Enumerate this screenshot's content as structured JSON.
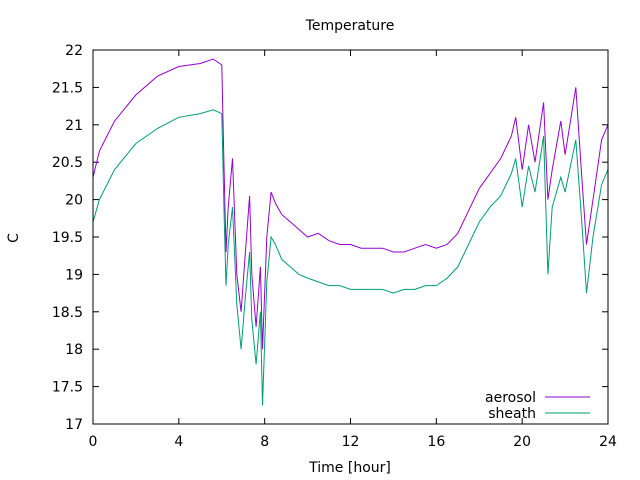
{
  "chart_data": {
    "type": "line",
    "title": "Temperature",
    "xlabel": "Time [hour]",
    "ylabel": "C",
    "xlim": [
      0,
      24
    ],
    "ylim": [
      17,
      22
    ],
    "xticks": [
      0,
      4,
      8,
      12,
      16,
      20,
      24
    ],
    "yticks": [
      17,
      17.5,
      18,
      18.5,
      19,
      19.5,
      20,
      20.5,
      21,
      21.5,
      22
    ],
    "xtick_labels": [
      "0",
      "4",
      "8",
      "12",
      "16",
      "20",
      "24"
    ],
    "ytick_labels": [
      "17",
      "17.5",
      "18",
      "18.5",
      "19",
      "19.5",
      "20",
      "20.5",
      "21",
      "21.5",
      "22"
    ],
    "grid": false,
    "legend_position": "bottom-right",
    "series": [
      {
        "name": "aerosol",
        "color": "#9400d3",
        "x": [
          0,
          0.3,
          1,
          2,
          3,
          4,
          5,
          5.6,
          6.0,
          6.1,
          6.2,
          6.3,
          6.5,
          6.7,
          6.9,
          7.1,
          7.3,
          7.4,
          7.6,
          7.8,
          7.9,
          8.1,
          8.3,
          8.5,
          8.8,
          9.2,
          9.6,
          10,
          10.5,
          11,
          11.5,
          12,
          12.5,
          13,
          13.5,
          14,
          14.5,
          15,
          15.5,
          16,
          16.5,
          17,
          17.5,
          18,
          18.5,
          19,
          19.5,
          19.7,
          20,
          20.3,
          20.6,
          21,
          21.2,
          21.4,
          21.8,
          22,
          22.5,
          22.8,
          23,
          23.3,
          23.7,
          24
        ],
        "y": [
          20.3,
          20.65,
          21.05,
          21.4,
          21.65,
          21.78,
          21.82,
          21.88,
          21.8,
          20.5,
          19.3,
          19.9,
          20.55,
          19.0,
          18.5,
          19.3,
          20.05,
          19.0,
          18.3,
          19.1,
          18.0,
          19.5,
          20.1,
          19.95,
          19.8,
          19.7,
          19.6,
          19.5,
          19.55,
          19.45,
          19.4,
          19.4,
          19.35,
          19.35,
          19.35,
          19.3,
          19.3,
          19.35,
          19.4,
          19.35,
          19.4,
          19.55,
          19.85,
          20.15,
          20.35,
          20.55,
          20.85,
          21.1,
          20.4,
          21.0,
          20.5,
          21.3,
          20.0,
          20.4,
          21.05,
          20.6,
          21.5,
          20.2,
          19.4,
          20.0,
          20.8,
          21.0
        ]
      },
      {
        "name": "sheath",
        "color": "#009e73",
        "x": [
          0,
          0.3,
          1,
          2,
          3,
          4,
          5,
          5.6,
          6.0,
          6.1,
          6.2,
          6.3,
          6.5,
          6.7,
          6.9,
          7.1,
          7.3,
          7.4,
          7.6,
          7.8,
          7.9,
          8.1,
          8.3,
          8.5,
          8.8,
          9.2,
          9.6,
          10,
          10.5,
          11,
          11.5,
          12,
          12.5,
          13,
          13.5,
          14,
          14.5,
          15,
          15.5,
          16,
          16.5,
          17,
          17.5,
          18,
          18.5,
          19,
          19.5,
          19.7,
          20,
          20.3,
          20.6,
          21,
          21.2,
          21.4,
          21.8,
          22,
          22.5,
          22.8,
          23,
          23.3,
          23.7,
          24
        ],
        "y": [
          19.7,
          20.0,
          20.4,
          20.75,
          20.95,
          21.1,
          21.15,
          21.2,
          21.15,
          19.9,
          18.85,
          19.4,
          19.9,
          18.6,
          18.0,
          18.7,
          19.3,
          18.4,
          17.8,
          18.5,
          17.25,
          18.9,
          19.5,
          19.4,
          19.2,
          19.1,
          19.0,
          18.95,
          18.9,
          18.85,
          18.85,
          18.8,
          18.8,
          18.8,
          18.8,
          18.75,
          18.8,
          18.8,
          18.85,
          18.85,
          18.95,
          19.1,
          19.4,
          19.7,
          19.9,
          20.05,
          20.35,
          20.55,
          19.9,
          20.45,
          20.1,
          20.85,
          19.0,
          19.9,
          20.3,
          20.1,
          20.8,
          19.6,
          18.75,
          19.5,
          20.2,
          20.4
        ]
      }
    ]
  }
}
